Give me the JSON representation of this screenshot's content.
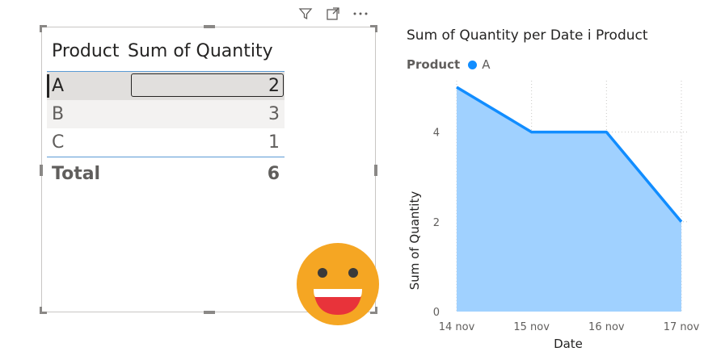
{
  "table": {
    "header": {
      "product": "Product",
      "quantity": "Sum of Quantity"
    },
    "rows": [
      {
        "product": "A",
        "quantity": "2"
      },
      {
        "product": "B",
        "quantity": "3"
      },
      {
        "product": "C",
        "quantity": "1"
      }
    ],
    "total": {
      "label": "Total",
      "value": "6"
    }
  },
  "visual_header_icons": [
    "filter-icon",
    "focus-mode-icon",
    "more-options-icon"
  ],
  "chart": {
    "title": "Sum of Quantity per Date i Product",
    "legend": {
      "title": "Product",
      "items": [
        "A"
      ]
    },
    "xlabel": "Date",
    "ylabel": "Sum of Quantity"
  },
  "chart_data": {
    "type": "area",
    "title": "Sum of Quantity per Date i Product",
    "x": [
      "14 nov",
      "15 nov",
      "16 nov",
      "17 nov"
    ],
    "series": [
      {
        "name": "A",
        "values": [
          5,
          4,
          4,
          2
        ]
      }
    ],
    "xlabel": "Date",
    "ylabel": "Sum of Quantity",
    "yticks": [
      0,
      2,
      4
    ],
    "ylim": [
      0,
      5
    ],
    "grid": true,
    "legend_position": "top-left",
    "colors": {
      "line": "#118dff",
      "fill": "#a0d1ff"
    }
  }
}
